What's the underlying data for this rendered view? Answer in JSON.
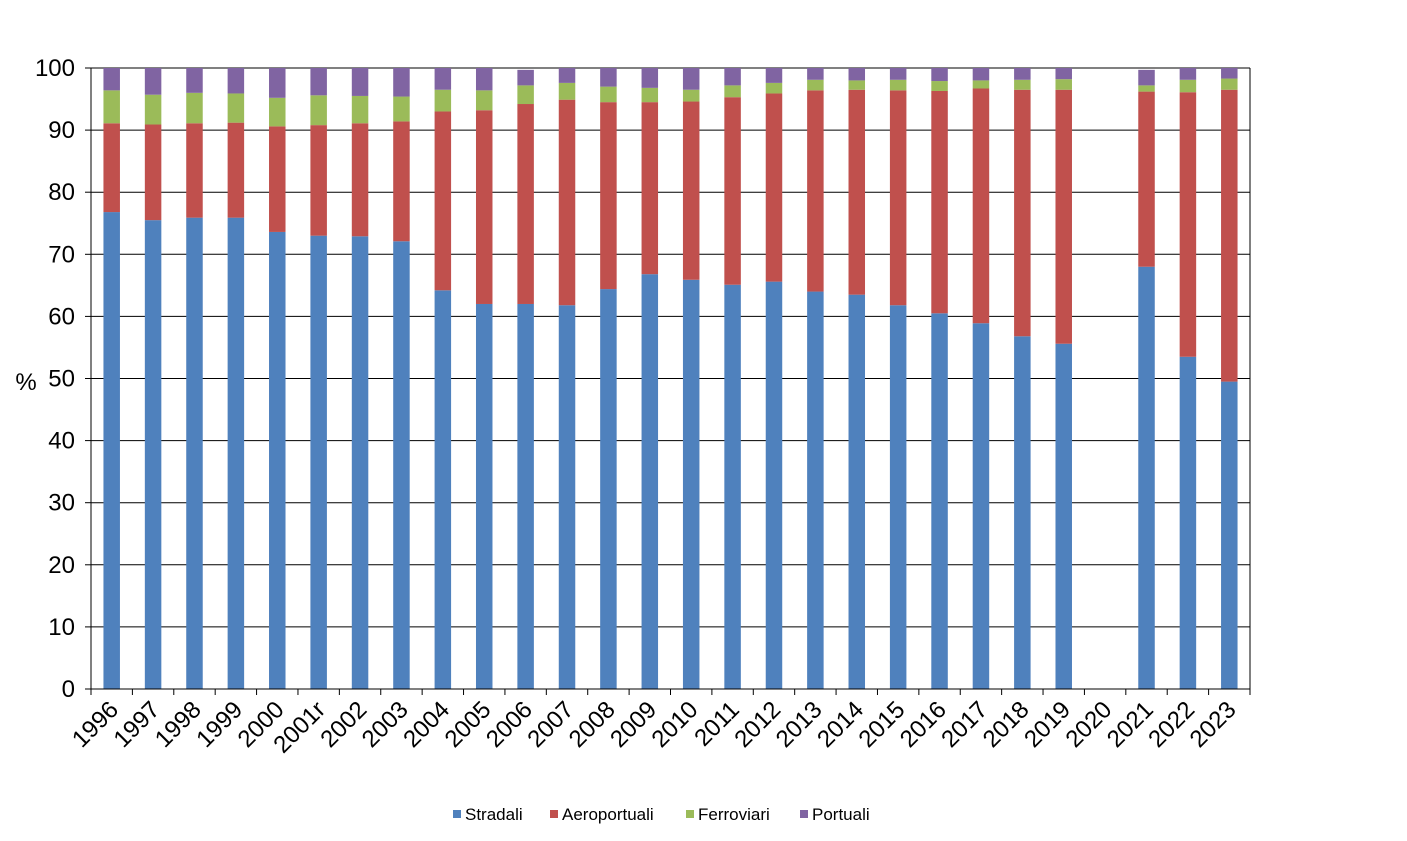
{
  "chart_data": {
    "type": "bar",
    "stacked": true,
    "title": "",
    "xlabel": "",
    "ylabel": "%",
    "ylim": [
      0,
      100
    ],
    "yticks": [
      0,
      10,
      20,
      30,
      40,
      50,
      60,
      70,
      80,
      90,
      100
    ],
    "grid": true,
    "legend_position": "bottom",
    "categories": [
      "1996",
      "1997",
      "1998",
      "1999",
      "2000",
      "2001r",
      "2002",
      "2003",
      "2004",
      "2005",
      "2006",
      "2007",
      "2008",
      "2009",
      "2010",
      "2011",
      "2012",
      "2013",
      "2014",
      "2015",
      "2016",
      "2017",
      "2018",
      "2019",
      "2020",
      "2021",
      "2022",
      "2023"
    ],
    "series": [
      {
        "name": "Stradali",
        "color": "#4F81BD",
        "values": [
          76.8,
          75.5,
          75.9,
          75.9,
          73.6,
          73.0,
          72.9,
          72.1,
          64.2,
          62.0,
          62.0,
          61.8,
          64.4,
          66.8,
          65.9,
          65.1,
          65.6,
          64.0,
          63.5,
          61.8,
          60.5,
          58.9,
          56.8,
          55.6,
          null,
          68.0,
          53.5,
          49.5
        ]
      },
      {
        "name": "Aeroportuali",
        "color": "#C0504D",
        "values": [
          14.3,
          15.4,
          15.2,
          15.3,
          17.0,
          17.8,
          18.2,
          19.3,
          28.8,
          31.2,
          32.2,
          33.1,
          30.1,
          27.7,
          28.7,
          30.2,
          30.3,
          32.4,
          33.0,
          34.6,
          35.8,
          37.8,
          39.7,
          40.9,
          null,
          28.2,
          42.6,
          47.0
        ]
      },
      {
        "name": "Ferroviari",
        "color": "#9BBB59",
        "values": [
          5.3,
          4.8,
          4.9,
          4.7,
          4.6,
          4.8,
          4.4,
          4.0,
          3.5,
          3.2,
          3.0,
          2.7,
          2.5,
          2.3,
          1.9,
          1.9,
          1.7,
          1.7,
          1.5,
          1.7,
          1.6,
          1.3,
          1.6,
          1.7,
          null,
          1.0,
          2.0,
          1.8
        ]
      },
      {
        "name": "Portuali",
        "color": "#8064A2",
        "values": [
          3.6,
          4.3,
          4.0,
          4.1,
          4.8,
          4.4,
          4.5,
          4.6,
          3.5,
          3.6,
          2.5,
          2.4,
          3.0,
          3.2,
          3.5,
          2.8,
          2.4,
          1.9,
          2.0,
          1.9,
          2.1,
          2.0,
          1.9,
          1.8,
          null,
          2.5,
          1.9,
          1.7
        ]
      }
    ]
  }
}
